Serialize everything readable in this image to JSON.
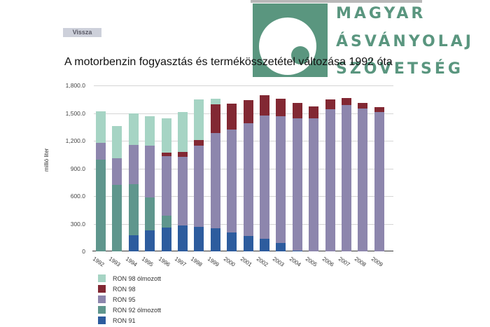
{
  "back_button": {
    "label": "Vissza"
  },
  "logo": {
    "lines": [
      "MAGYAR",
      "ÁSVÁNYOLAJ",
      "SZÖVETSÉG"
    ],
    "color": "#5a967f"
  },
  "chart_data": {
    "type": "bar",
    "stacked": true,
    "title": "A motorbenzin fogyasztás és termékösszetétel változása 1992 óta",
    "xlabel": "",
    "ylabel": "millió liter",
    "ylim": [
      0,
      1800
    ],
    "yticks": [
      "0",
      "300.0",
      "600.0",
      "900.0",
      "1,200.0",
      "1,500.0",
      "1,800.0"
    ],
    "grid": true,
    "legend_position": "bottom-left",
    "categories": [
      "1992",
      "1993",
      "1994",
      "1995",
      "1996",
      "1997",
      "1998",
      "1999",
      "2000",
      "2001",
      "2002",
      "2003",
      "2004",
      "2005",
      "2006",
      "2007",
      "2008",
      "2009"
    ],
    "series": [
      {
        "name": "RON 91",
        "color": "#2d5c9e",
        "values": [
          0,
          0,
          177,
          228,
          260,
          281,
          263,
          253,
          207,
          164,
          139,
          91,
          10,
          0,
          0,
          0,
          0,
          0
        ]
      },
      {
        "name": "RON 92 ólmozott",
        "color": "#5f968d",
        "values": [
          997,
          724,
          549,
          359,
          124,
          0,
          0,
          0,
          0,
          0,
          0,
          0,
          0,
          0,
          0,
          0,
          0,
          0
        ]
      },
      {
        "name": "RON 95",
        "color": "#8d86ad",
        "values": [
          183,
          283,
          431,
          562,
          649,
          744,
          886,
          1030,
          1117,
          1226,
          1332,
          1375,
          1433,
          1443,
          1539,
          1584,
          1549,
          1514
        ]
      },
      {
        "name": "RON 98",
        "color": "#822833",
        "values": [
          0,
          0,
          0,
          0,
          35,
          53,
          61,
          314,
          279,
          251,
          220,
          192,
          170,
          126,
          106,
          79,
          58,
          53
        ]
      },
      {
        "name": "RON 98 ólmozott",
        "color": "#a6d4c4",
        "values": [
          341,
          350,
          339,
          314,
          375,
          436,
          435,
          61,
          0,
          0,
          0,
          0,
          0,
          0,
          0,
          0,
          0,
          0
        ]
      }
    ]
  }
}
